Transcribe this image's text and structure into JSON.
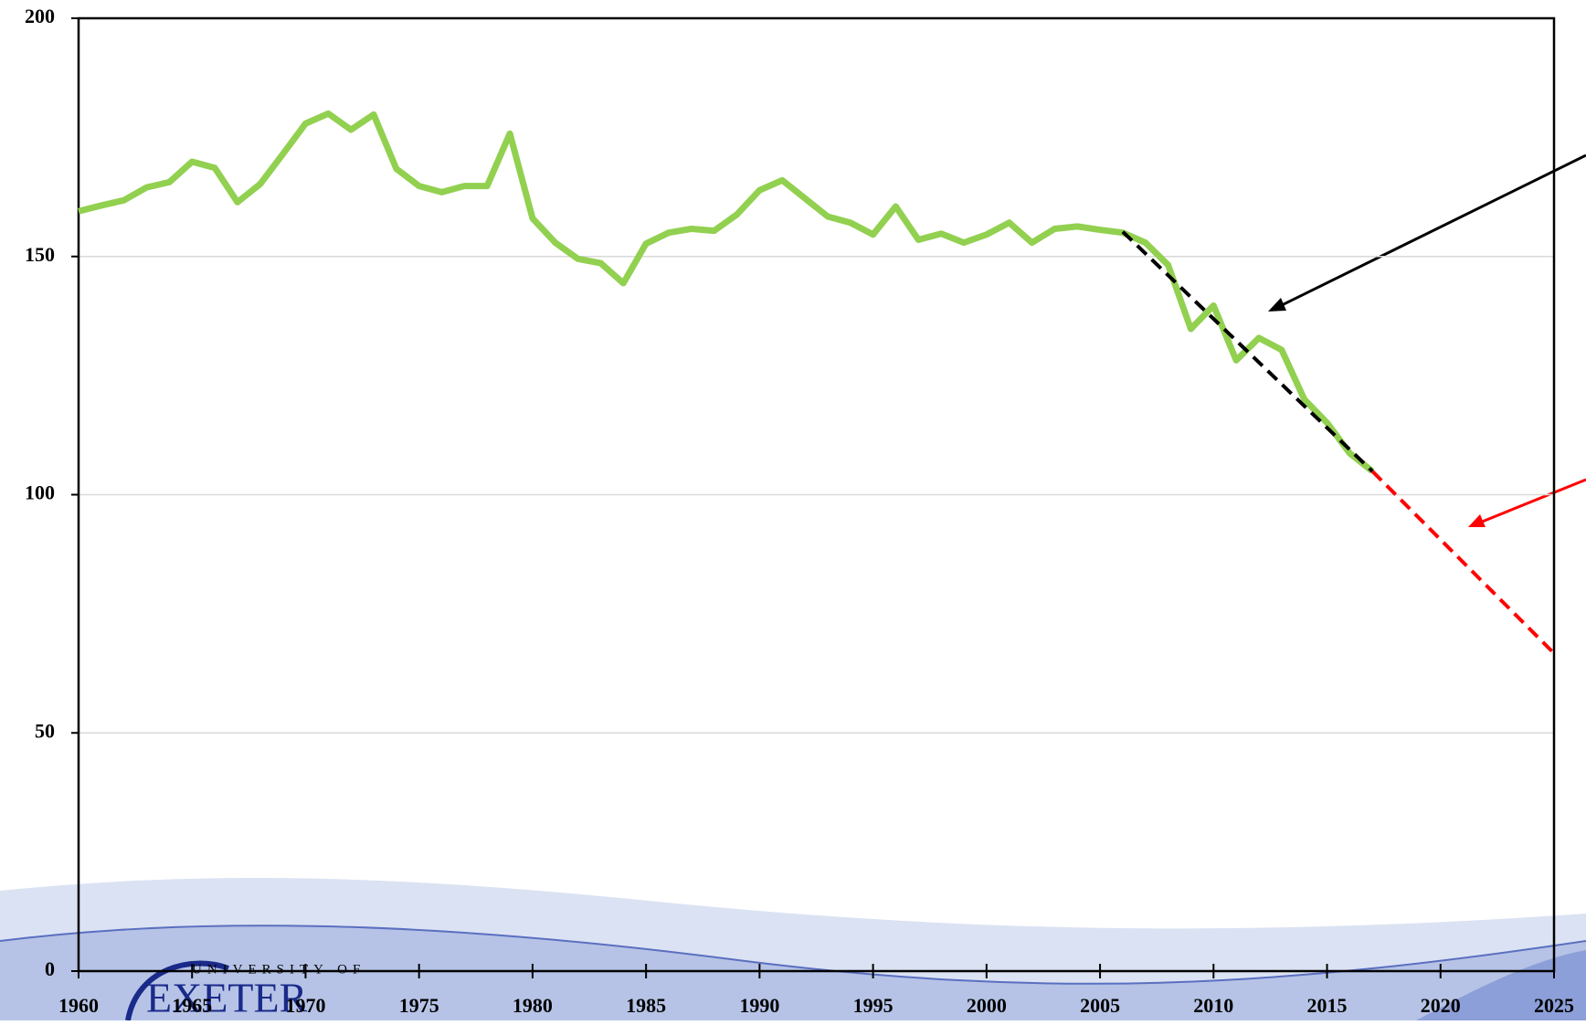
{
  "chart_data": {
    "type": "line",
    "logo": {
      "top": "UNIVERSITY OF",
      "name": "EXETER"
    },
    "xlim": [
      1960,
      2025
    ],
    "xticks": [
      1960,
      1965,
      1970,
      1975,
      1980,
      1985,
      1990,
      1995,
      2000,
      2005,
      2010,
      2015,
      2020,
      2025
    ],
    "ylim": [
      0,
      200
    ],
    "yticks": [
      0,
      50,
      100,
      150,
      200
    ],
    "grid": true,
    "series": [
      {
        "color": "#92d050",
        "dash": false,
        "x": [
          1960,
          1961,
          1962,
          1963,
          1964,
          1965,
          1966,
          1967,
          1968,
          1969,
          1970,
          1971,
          1972,
          1973,
          1974,
          1975,
          1976,
          1977,
          1978,
          1979,
          1980,
          1981,
          1982,
          1983,
          1984,
          1985,
          1986,
          1987,
          1988,
          1989,
          1990,
          1991,
          1992,
          1993,
          1994,
          1995,
          1996,
          1997,
          1998,
          1999,
          2000,
          2001,
          2002,
          2003,
          2004,
          2005,
          2006,
          2007,
          2008,
          2009,
          2010,
          2011,
          2012,
          2013,
          2014,
          2015,
          2016,
          2017
        ],
        "values": [
          159.5,
          160.7,
          161.8,
          164.5,
          165.6,
          169.9,
          168.6,
          161.4,
          165.2,
          171.5,
          177.9,
          180,
          176.6,
          179.8,
          168.4,
          164.8,
          163.5,
          164.8,
          164.8,
          175.8,
          158,
          152.9,
          149.5,
          148.6,
          144.4,
          152.7,
          155,
          155.8,
          155.4,
          158.8,
          163.9,
          166,
          162.2,
          158.4,
          157.1,
          154.6,
          160.5,
          153.5,
          154.8,
          152.9,
          154.6,
          157.1,
          152.9,
          155.8,
          156.3,
          155.6,
          155,
          152.9,
          148.2,
          134.8,
          139.7,
          128.2,
          132.9,
          130.4,
          120,
          115.1,
          108.7,
          104.9
        ]
      },
      {
        "color": "#000000",
        "dash": true,
        "x": [
          2006,
          2017
        ],
        "values": [
          155.2,
          104.9
        ]
      },
      {
        "color": "#ff0000",
        "dash": true,
        "x": [
          2017,
          2025
        ],
        "values": [
          104.9,
          66.7
        ]
      }
    ]
  }
}
